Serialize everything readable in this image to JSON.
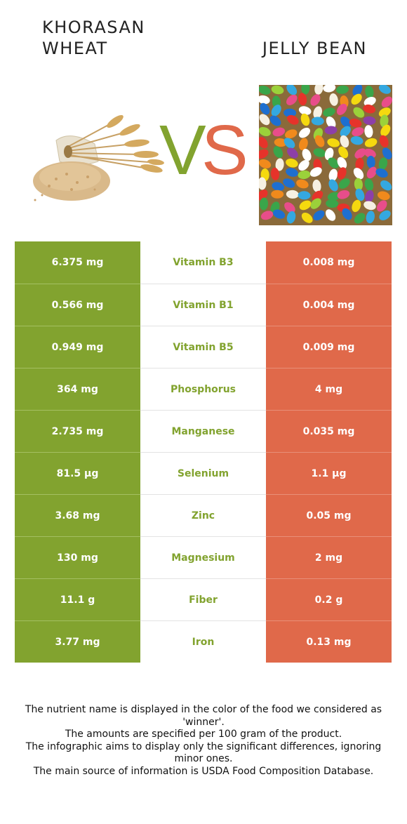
{
  "header": {
    "left_food": "KHORASAN\nWHEAT",
    "right_food": "JELLY BEAN",
    "vs": "VS"
  },
  "colors": {
    "winner_left": "#82a32f",
    "winner_right": "#e0694a"
  },
  "rows": [
    {
      "left": "6.375 mg",
      "nutrient": "Vitamin B3",
      "right": "0.008 mg"
    },
    {
      "left": "0.566 mg",
      "nutrient": "Vitamin B1",
      "right": "0.004 mg"
    },
    {
      "left": "0.949 mg",
      "nutrient": "Vitamin B5",
      "right": "0.009 mg"
    },
    {
      "left": "364 mg",
      "nutrient": "Phosphorus",
      "right": "4 mg"
    },
    {
      "left": "2.735 mg",
      "nutrient": "Manganese",
      "right": "0.035 mg"
    },
    {
      "left": "81.5 µg",
      "nutrient": "Selenium",
      "right": "1.1 µg"
    },
    {
      "left": "3.68 mg",
      "nutrient": "Zinc",
      "right": "0.05 mg"
    },
    {
      "left": "130 mg",
      "nutrient": "Magnesium",
      "right": "2 mg"
    },
    {
      "left": "11.1 g",
      "nutrient": "Fiber",
      "right": "0.2 g"
    },
    {
      "left": "3.77 mg",
      "nutrient": "Iron",
      "right": "0.13 mg"
    }
  ],
  "footnote": [
    "The nutrient name is displayed in the color of the food we considered as 'winner'.",
    "The amounts are specified per 100 gram of the product.",
    "The infographic aims to display only the significant differences, ignoring minor ones.",
    "The main source of information is USDA Food Composition Database."
  ]
}
